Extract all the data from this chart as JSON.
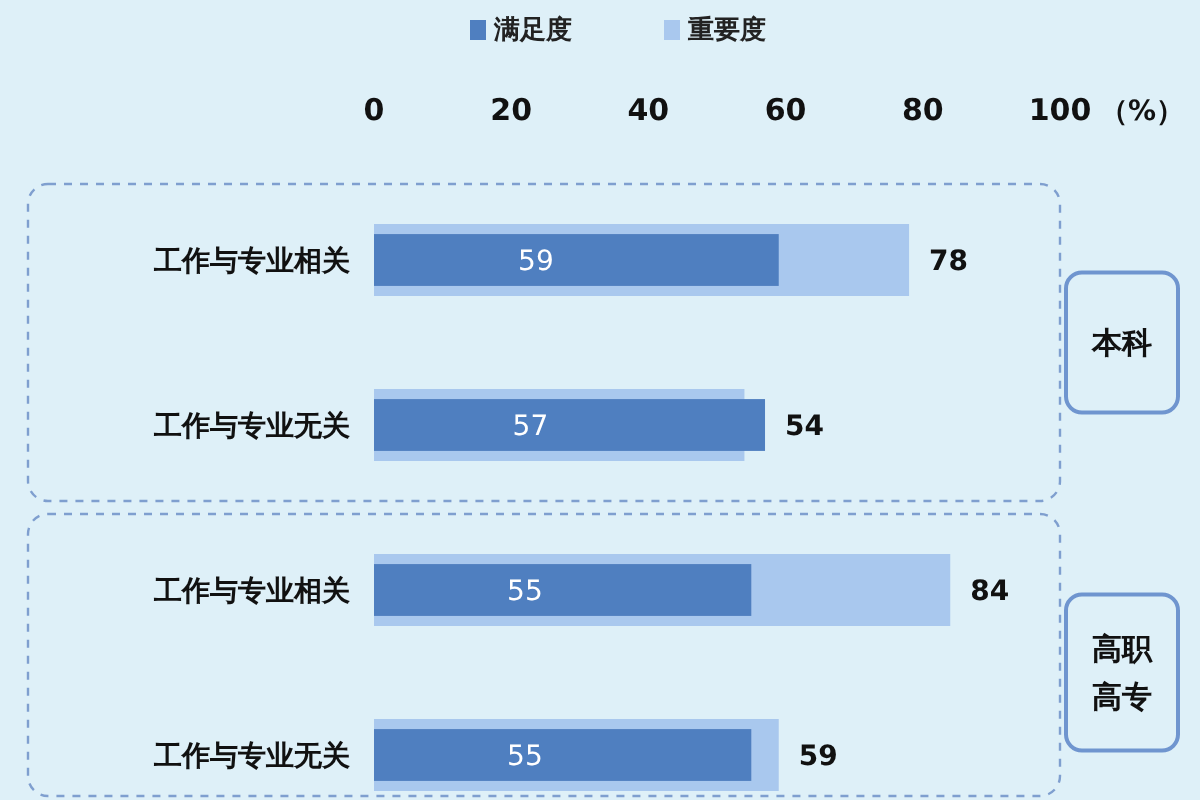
{
  "chart_data": {
    "type": "bar",
    "orientation": "horizontal",
    "categories": [
      "工作与专业相关",
      "工作与专业无关",
      "工作与专业相关",
      "工作与专业无关"
    ],
    "series": [
      {
        "name": "满足度",
        "color": "#4f7fc0",
        "values": [
          59,
          57,
          55,
          55
        ]
      },
      {
        "name": "重要度",
        "color": "#a9c8ee",
        "values": [
          78,
          54,
          84,
          59
        ]
      }
    ],
    "xlim": [
      0,
      100
    ],
    "xticks": [
      0,
      20,
      40,
      60,
      80,
      100
    ],
    "xlabel": "（%）",
    "legend": "top",
    "data_labels": true,
    "annotations": [
      "本科",
      "高职高专"
    ]
  }
}
